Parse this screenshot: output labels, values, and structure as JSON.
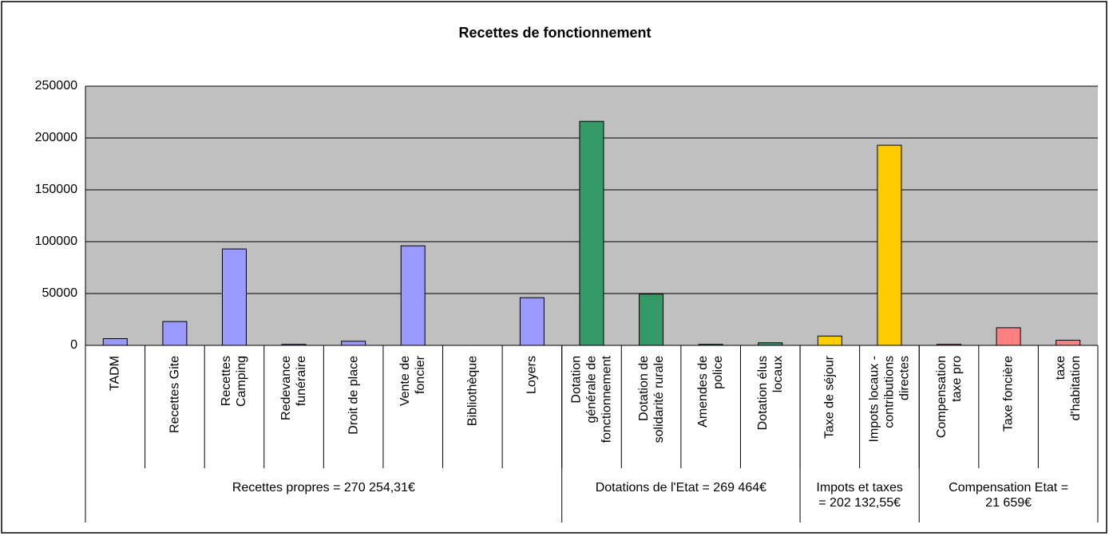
{
  "chart_data": {
    "type": "bar",
    "title": "Recettes de fonctionnement",
    "categories": [
      "TADM",
      "Recettes Gite",
      "Recettes\nCamping",
      "Redevance\nfunéraire",
      "Droit de place",
      "Vente de\nfoncier",
      "Bibliothèque",
      "Loyers",
      "Dotation\ngénérale de\nfonctionnement",
      "Dotation de\nsolidarité rurale",
      "Amendes de\npolice",
      "Dotation élus\nlocaux",
      "Taxe de séjour",
      "Impots locaux -\ncontributions\ndirectes",
      "Compensation\ntaxe pro",
      "Taxe foncière",
      "taxe\nd'habitation"
    ],
    "values": [
      6500,
      23000,
      93000,
      1000,
      4000,
      96000,
      0,
      46000,
      216000,
      49500,
      1000,
      2500,
      9000,
      193000,
      1000,
      17000,
      5000
    ],
    "colors": [
      "#9999ff",
      "#9999ff",
      "#9999ff",
      "#9999ff",
      "#9999ff",
      "#9999ff",
      "#9999ff",
      "#9999ff",
      "#339966",
      "#339966",
      "#339966",
      "#339966",
      "#ffcc00",
      "#ffcc00",
      "#ff8080",
      "#ff8080",
      "#ff8080"
    ],
    "groups": [
      {
        "label": "Recettes propres = 270 254,31€",
        "size": 8
      },
      {
        "label": "Dotations de l'Etat = 269 464€",
        "size": 4
      },
      {
        "label": "Impots et taxes\n= 202 132,55€",
        "size": 2
      },
      {
        "label": "Compensation Etat =\n21 659€",
        "size": 3
      }
    ],
    "ylim": [
      0,
      250000
    ],
    "yticks": [
      0,
      50000,
      100000,
      150000,
      200000,
      250000
    ],
    "grid": true,
    "plot_background": "#c0c0c0"
  }
}
